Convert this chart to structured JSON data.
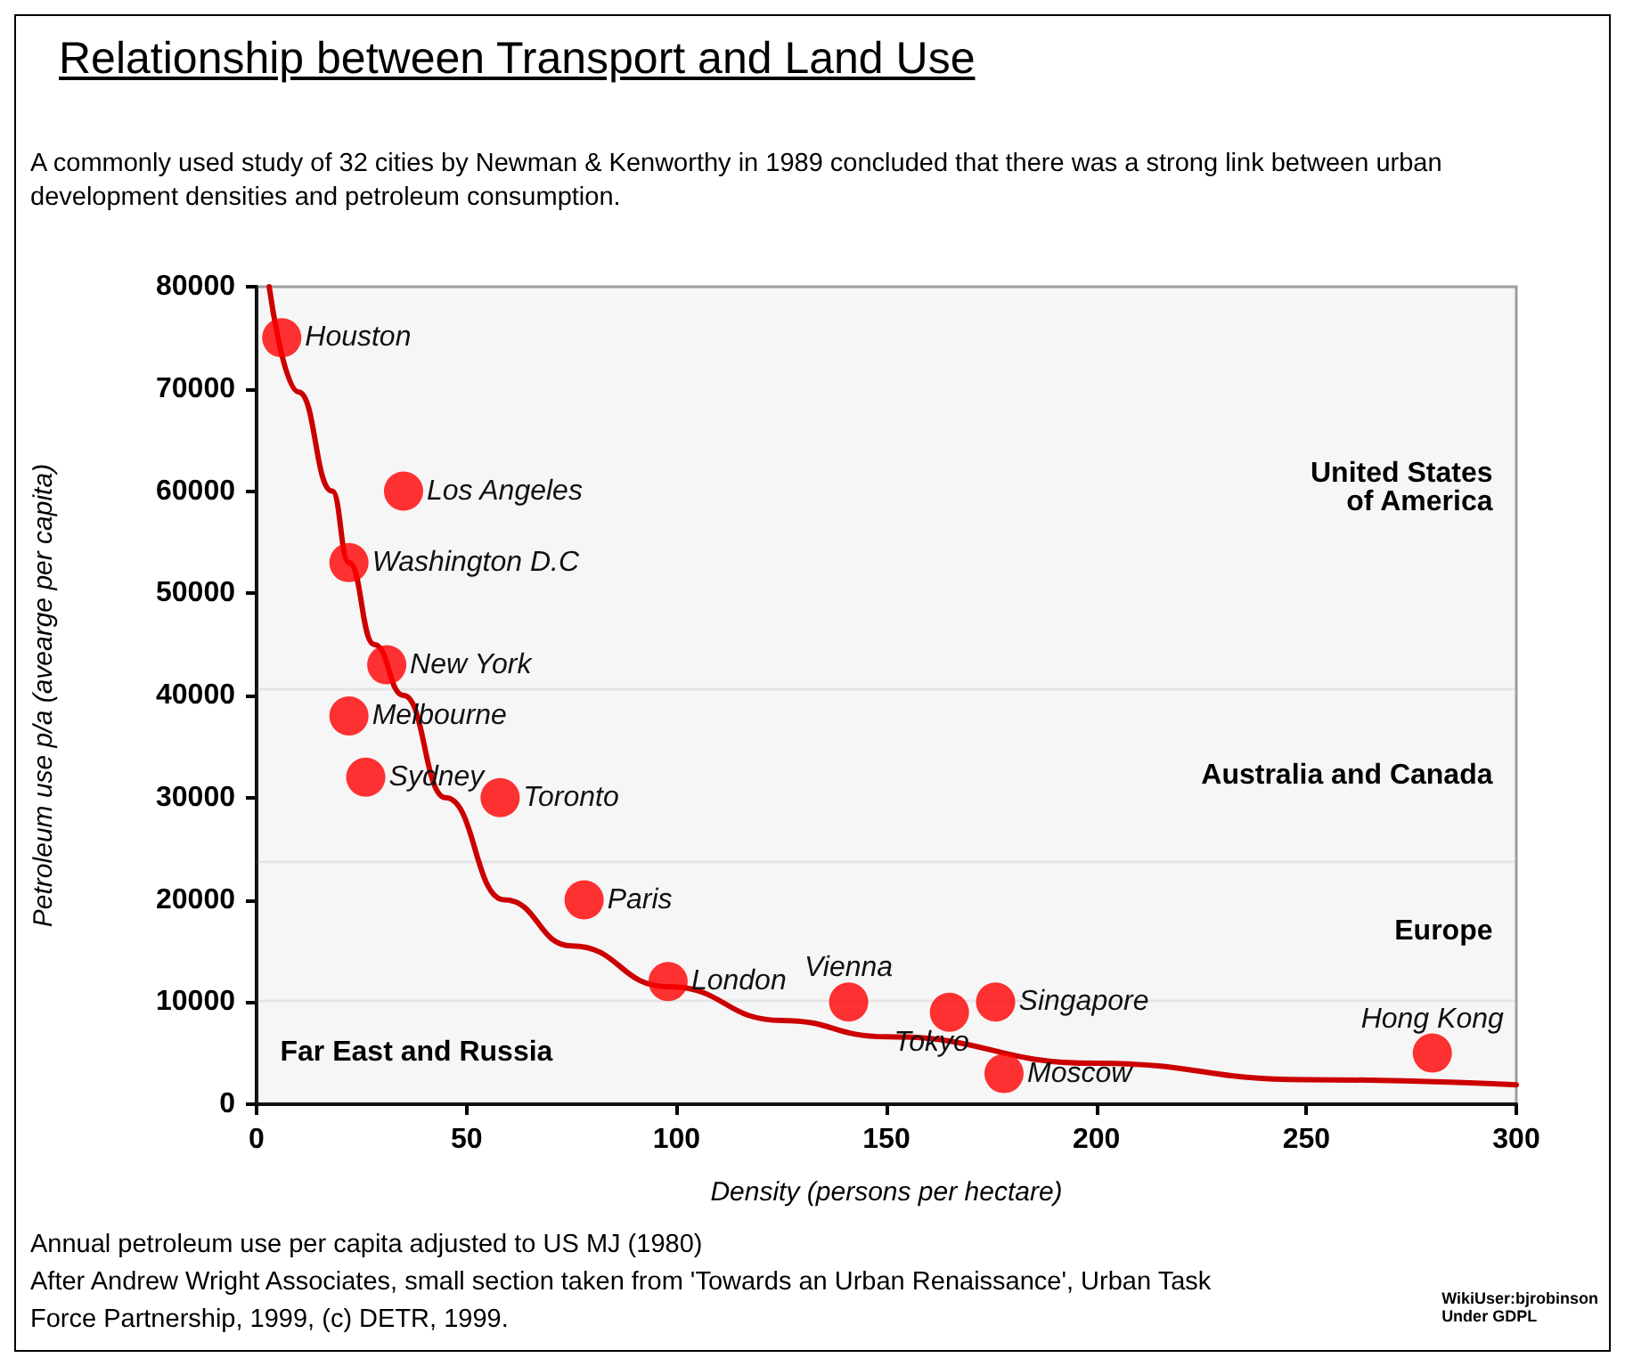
{
  "chart_data": {
    "type": "scatter",
    "title": "Relationship between Transport and Land Use",
    "subtitle": "A commonly used study of 32 cities by Newman & Kenworthy in 1989 concluded that there was a strong link between urban development densities and petroleum consumption.",
    "xlabel": "Density (persons per hectare)",
    "ylabel": "Petroleum use p/a (avearge per capita)",
    "series": [
      {
        "color": "#ff0000",
        "marker": "circle",
        "x": [
          6,
          35,
          22,
          31,
          22,
          26,
          58,
          78,
          98,
          141,
          165,
          176,
          178,
          280
        ],
        "values": [
          75000,
          60000,
          53000,
          43000,
          38000,
          32000,
          30000,
          20000,
          12000,
          10000,
          9000,
          10000,
          3000,
          5000
        ]
      },
      {
        "type": "line",
        "color": "#cc0000",
        "x": [
          3,
          10,
          18,
          22,
          28,
          35,
          45,
          59,
          75,
          98,
          125,
          150,
          200,
          250,
          300
        ],
        "values": [
          80000,
          69700,
          60000,
          53000,
          45000,
          40000,
          30000,
          20000,
          15500,
          11500,
          8200,
          6600,
          4000,
          2400,
          1900
        ]
      }
    ],
    "xlim": [
      0,
      300
    ],
    "xticks": [
      0,
      50,
      100,
      150,
      200,
      250,
      300
    ],
    "ylim": [
      0,
      80000
    ],
    "yticks": [
      0,
      10000,
      20000,
      30000,
      40000,
      50000,
      60000,
      70000,
      80000
    ],
    "bands": [
      {
        "axis": "y",
        "from": 40600,
        "to": 80000,
        "label": "United States\nof America",
        "color": "#a0a0a0"
      },
      {
        "axis": "y",
        "from": 23700,
        "to": 40600,
        "label": "Australia and Canada",
        "color": "#a0a0a0"
      },
      {
        "axis": "y",
        "from": 10100,
        "to": 23700,
        "label": "Europe",
        "color": "#a0a0a0"
      },
      {
        "axis": "y",
        "from": 0,
        "to": 10100,
        "label": "Far East and Russia",
        "color": "#a0a0a0"
      }
    ],
    "annotations": [
      {
        "text": "Houston",
        "x": 6,
        "y": 75000
      },
      {
        "text": "Los Angeles",
        "x": 35,
        "y": 60000
      },
      {
        "text": "Washington D.C",
        "x": 22,
        "y": 53000
      },
      {
        "text": "New York",
        "x": 31,
        "y": 43000
      },
      {
        "text": "Melbourne",
        "x": 22,
        "y": 38000
      },
      {
        "text": "Sydney",
        "x": 26,
        "y": 32000
      },
      {
        "text": "Toronto",
        "x": 58,
        "y": 30000
      },
      {
        "text": "Paris",
        "x": 78,
        "y": 20000
      },
      {
        "text": "London",
        "x": 98,
        "y": 12000
      },
      {
        "text": "Vienna",
        "x": 141,
        "y": 10000
      },
      {
        "text": "Tokyo",
        "x": 165,
        "y": 9000
      },
      {
        "text": "Singapore",
        "x": 176,
        "y": 10000
      },
      {
        "text": "Moscow",
        "x": 178,
        "y": 3000
      },
      {
        "text": "Hong Kong",
        "x": 280,
        "y": 5000
      },
      "Annual petroleum use per capita adjusted to US MJ (1980)",
      "After Andrew Wright Associates, small section taken from 'Towards an Urban Renaissance', Urban Task Force Partnership, 1999, (c) DETR, 1999.",
      "WikiUser:bjrobinson\nUnder GDPL"
    ]
  }
}
